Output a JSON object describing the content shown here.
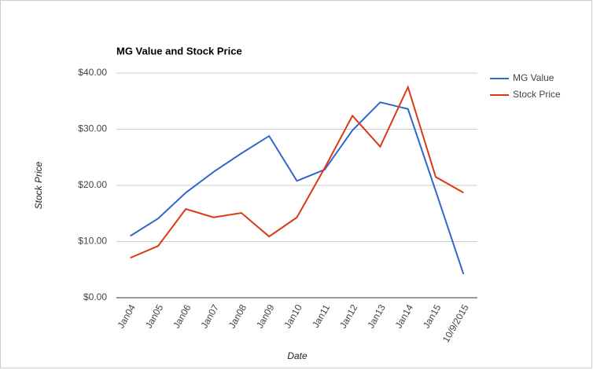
{
  "chart_data": {
    "type": "line",
    "title": "MG Value and Stock Price",
    "x_label": "Date",
    "y_label": "Stock Price",
    "categories": [
      "Jan04",
      "Jan05",
      "Jan06",
      "Jan07",
      "Jan08",
      "Jan09",
      "Jan10",
      "Jan11",
      "Jan12",
      "Jan13",
      "Jan14",
      "Jan15",
      "10/9/2015"
    ],
    "series": [
      {
        "name": "MG Value",
        "color": "#3366cc",
        "values": [
          11.0,
          14.1,
          18.7,
          22.4,
          25.7,
          28.8,
          20.8,
          22.8,
          29.8,
          34.8,
          33.6,
          19.0,
          4.2
        ]
      },
      {
        "name": "Stock Price",
        "color": "#dc3912",
        "values": [
          7.1,
          9.2,
          15.8,
          14.3,
          15.1,
          10.9,
          14.3,
          23.1,
          32.4,
          26.9,
          37.5,
          21.5,
          18.7
        ]
      }
    ],
    "ylim": [
      0,
      40
    ],
    "yticks": [
      {
        "value": 0,
        "label": "$0.00"
      },
      {
        "value": 10,
        "label": "$10.00"
      },
      {
        "value": 20,
        "label": "$20.00"
      },
      {
        "value": 30,
        "label": "$30.00"
      },
      {
        "value": 40,
        "label": "$40.00"
      }
    ],
    "grid": true,
    "legend": "right"
  }
}
